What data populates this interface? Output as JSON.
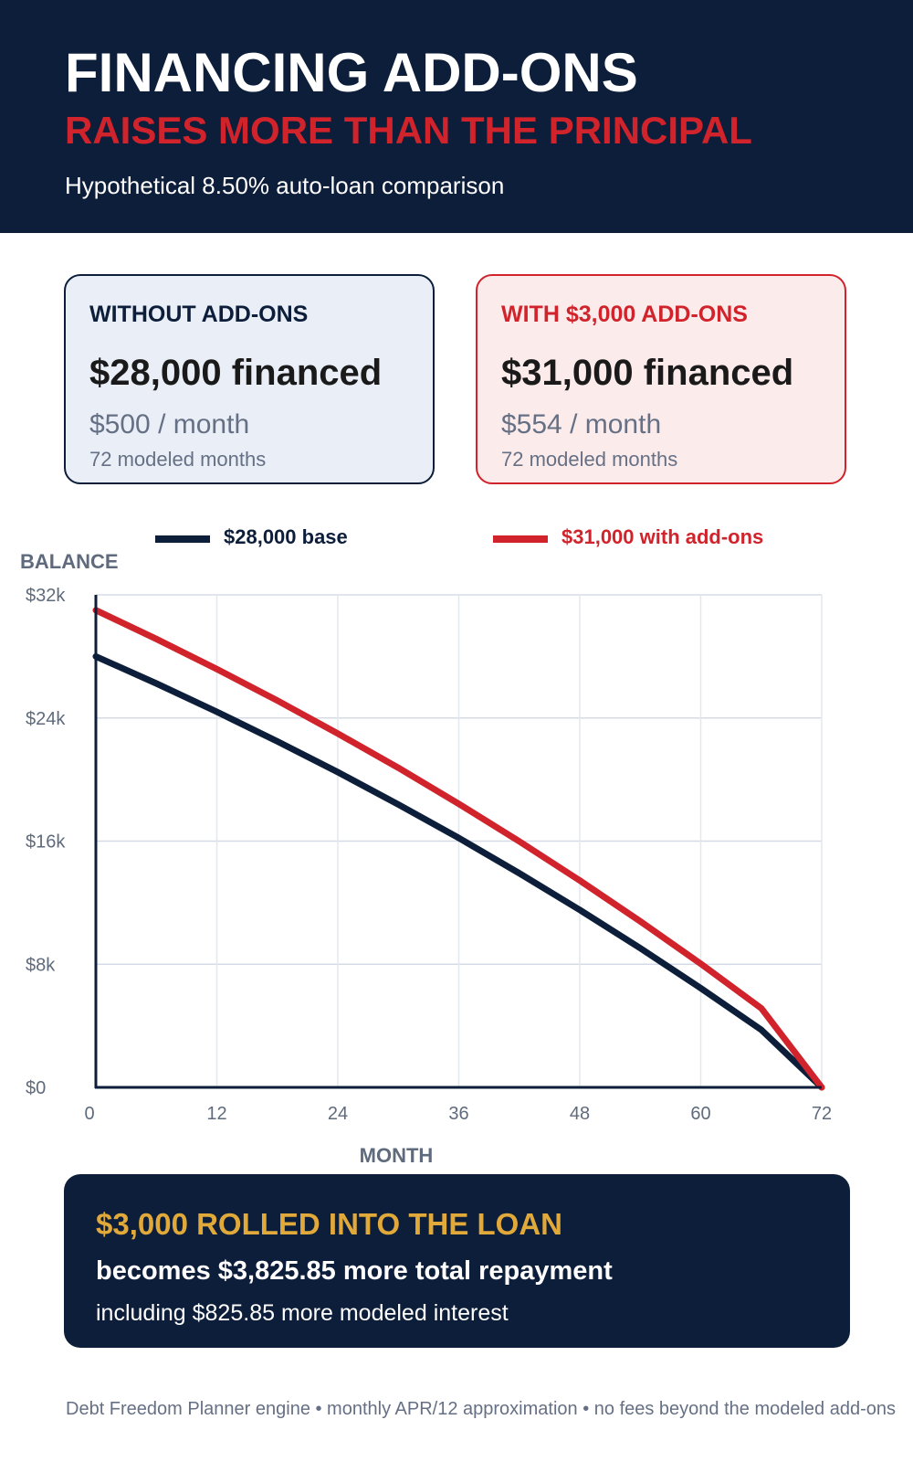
{
  "header": {
    "title": "FINANCING ADD-ONS",
    "subtitle": "RAISES MORE THAN THE PRINCIPAL",
    "caption": "Hypothetical 8.50% auto-loan comparison"
  },
  "cards": {
    "base": {
      "label": "WITHOUT ADD-ONS",
      "amount": "$28,000 financed",
      "payment": "$500 / month",
      "term": "72 modeled months"
    },
    "addon": {
      "label": "WITH $3,000 ADD-ONS",
      "amount": "$31,000 financed",
      "payment": "$554 / month",
      "term": "72 modeled months"
    }
  },
  "summary": {
    "headline": "$3,000 ROLLED INTO THE LOAN",
    "main": "becomes $3,825.85 more total repayment",
    "sub": "including $825.85 more modeled interest"
  },
  "footer": "Debt Freedom Planner engine • monthly APR/12 approximation • no fees beyond the modeled add-ons",
  "colors": {
    "navy": "#0d1e3a",
    "red": "#d0232b",
    "gold": "#e1a93a"
  },
  "chart_data": {
    "type": "line",
    "xlabel": "MONTH",
    "ylabel": "BALANCE",
    "xlim": [
      0,
      72
    ],
    "ylim": [
      0,
      32000
    ],
    "x_ticks": [
      0,
      12,
      24,
      36,
      48,
      60,
      72
    ],
    "x_tick_labels": [
      "0",
      "12",
      "24",
      "36",
      "48",
      "60",
      "72"
    ],
    "y_ticks": [
      0,
      8000,
      16000,
      24000,
      32000
    ],
    "y_tick_labels": [
      "$0",
      "$8k",
      "$16k",
      "$24k",
      "$32k"
    ],
    "grid": true,
    "legend_position": "top",
    "x": [
      0,
      6,
      12,
      18,
      24,
      30,
      36,
      42,
      48,
      54,
      60,
      66,
      72
    ],
    "series": [
      {
        "name": "$28,000 base",
        "color": "#0d1e3a",
        "values": [
          28000,
          26240,
          24400,
          22480,
          20480,
          18380,
          16200,
          13910,
          11530,
          9040,
          6450,
          3740,
          0
        ]
      },
      {
        "name": "$31,000 with add-ons",
        "color": "#d0232b",
        "values": [
          31000,
          29130,
          27180,
          25130,
          22990,
          20760,
          18420,
          15980,
          13440,
          10790,
          8030,
          5140,
          0
        ]
      }
    ]
  }
}
